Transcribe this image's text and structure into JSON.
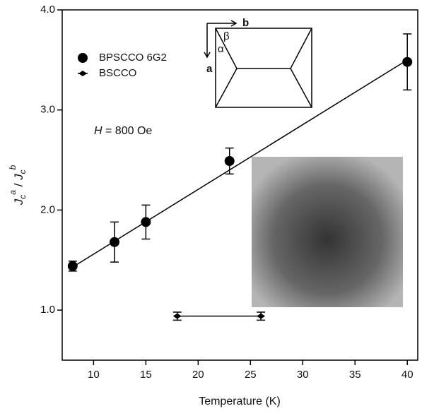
{
  "chart_data": {
    "type": "scatter",
    "x_label": "Temperature (K)",
    "y_label_parts": [
      "J",
      "c",
      "a",
      " / ",
      "J",
      "c",
      "b"
    ],
    "annotation_parts": [
      "H",
      " = 800 Oe"
    ],
    "inset_labels": [
      "b",
      "a",
      "β",
      "α"
    ],
    "xlim": [
      7,
      41
    ],
    "ylim": [
      0.5,
      4.0
    ],
    "xticks": [
      10,
      15,
      20,
      25,
      30,
      35,
      40
    ],
    "yticks": [
      {
        "value": 1,
        "label": "1.0"
      },
      {
        "value": 2,
        "label": "2.0"
      },
      {
        "value": 3,
        "label": "3.0"
      },
      {
        "value": 4,
        "label": "4.0"
      }
    ],
    "series": [
      {
        "name": "BPSCCO 6G2",
        "color": "#000000",
        "marker": "circle",
        "x": [
          8,
          12,
          15,
          23,
          40
        ],
        "values": [
          1.44,
          1.68,
          1.88,
          2.49,
          3.48
        ],
        "errors": [
          0.05,
          0.2,
          0.17,
          0.13,
          0.28
        ]
      },
      {
        "name": "BSCCO",
        "color": "#000000",
        "marker": "diamond",
        "x": [
          18,
          26
        ],
        "values": [
          0.94,
          0.94
        ],
        "errors": [
          0.04,
          0.04
        ]
      }
    ],
    "fit": {
      "x": [
        8,
        40
      ],
      "values": [
        1.43,
        3.5
      ]
    }
  }
}
